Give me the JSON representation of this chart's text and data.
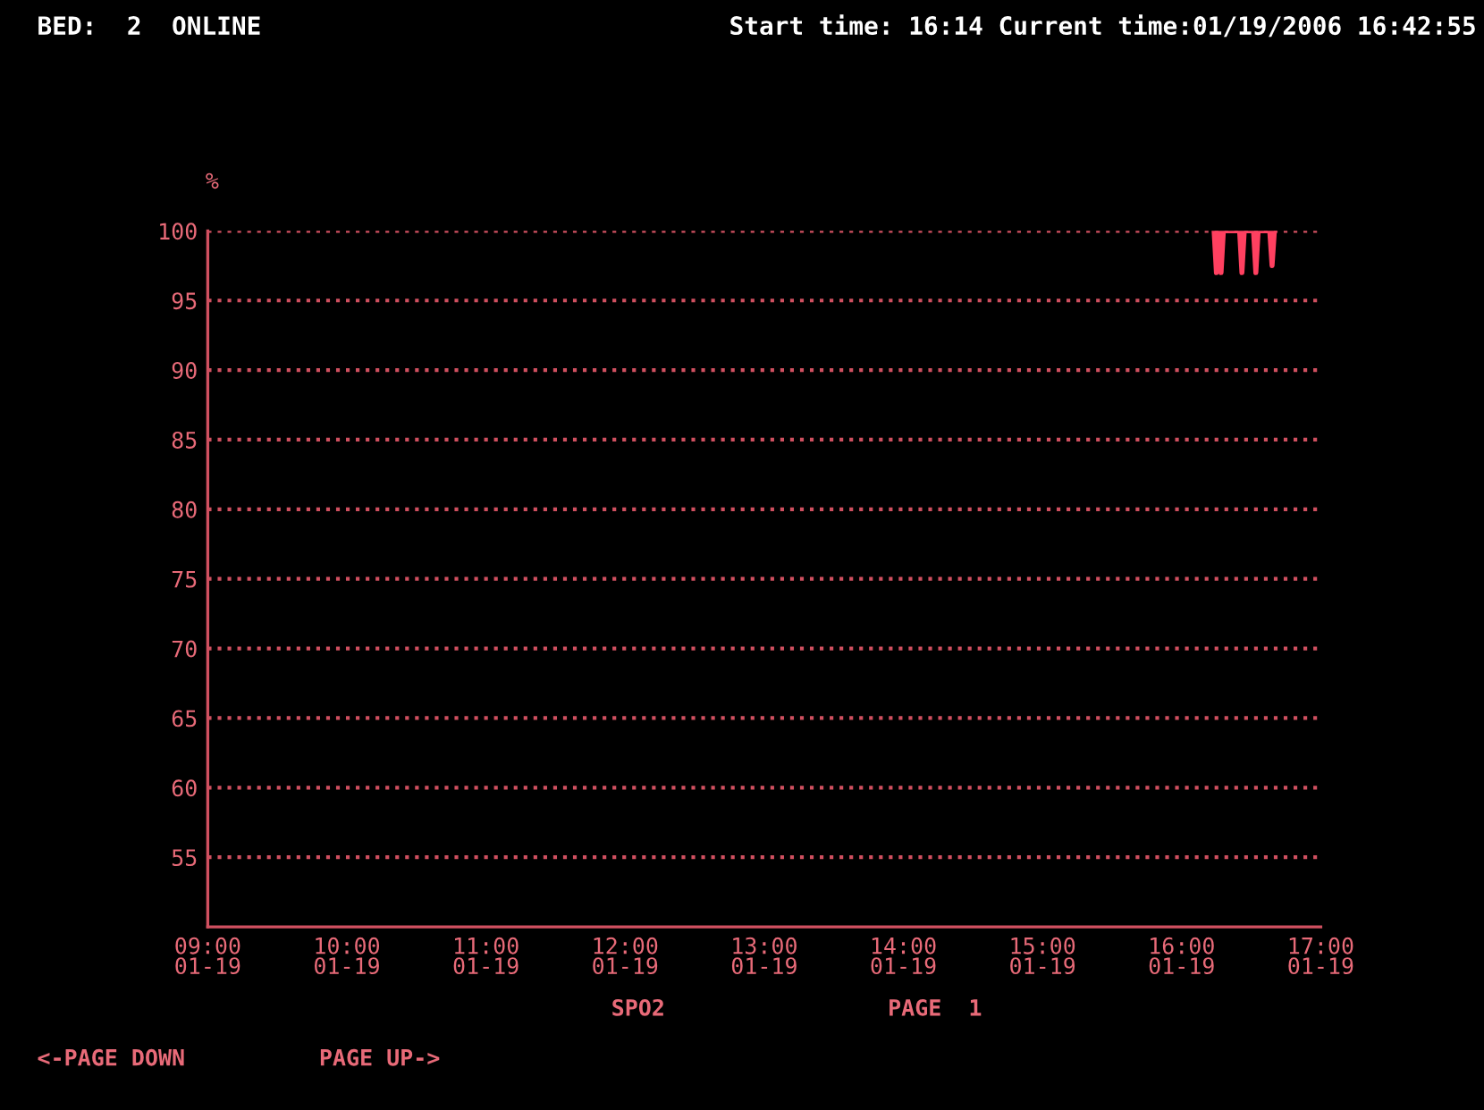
{
  "chart_data": {
    "type": "line",
    "title": "BED:  2  ONLINE",
    "subtitle": "Start time: 16:14 Current time:01/19/2006 16:42:55",
    "xlabel": "SPO2",
    "ylabel": "%",
    "annotations": [
      "PAGE  1",
      "<-PAGE DOWN",
      "PAGE UP->"
    ],
    "series": [
      {
        "color": "#ff4060",
        "x": [
          "2006-01-19T16:14",
          "2006-01-19T16:15",
          "2006-01-19T16:16",
          "2006-01-19T16:17",
          "2006-01-19T16:18",
          "2006-01-19T16:25",
          "2006-01-19T16:26",
          "2006-01-19T16:27",
          "2006-01-19T16:31",
          "2006-01-19T16:32",
          "2006-01-19T16:33",
          "2006-01-19T16:38",
          "2006-01-19T16:39",
          "2006-01-19T16:40"
        ],
        "values": [
          100,
          97,
          100,
          97,
          100,
          100,
          97,
          100,
          100,
          97,
          100,
          100,
          97.5,
          100
        ]
      }
    ],
    "xlim": [
      "2006-01-19T09:00",
      "2006-01-19T17:00"
    ],
    "xticks": [
      {
        "value": "2006-01-19T09:00",
        "label": "09:00\n01-19"
      },
      {
        "value": "2006-01-19T10:00",
        "label": "10:00\n01-19"
      },
      {
        "value": "2006-01-19T11:00",
        "label": "11:00\n01-19"
      },
      {
        "value": "2006-01-19T12:00",
        "label": "12:00\n01-19"
      },
      {
        "value": "2006-01-19T13:00",
        "label": "13:00\n01-19"
      },
      {
        "value": "2006-01-19T14:00",
        "label": "14:00\n01-19"
      },
      {
        "value": "2006-01-19T15:00",
        "label": "15:00\n01-19"
      },
      {
        "value": "2006-01-19T16:00",
        "label": "16:00\n01-19"
      },
      {
        "value": "2006-01-19T17:00",
        "label": "17:00\n01-19"
      }
    ],
    "ylim": [
      50,
      100
    ],
    "yticks": [
      55,
      60,
      65,
      70,
      75,
      80,
      85,
      90,
      95,
      100
    ],
    "grid": "y",
    "line_style": "solid",
    "marker": "none"
  }
}
